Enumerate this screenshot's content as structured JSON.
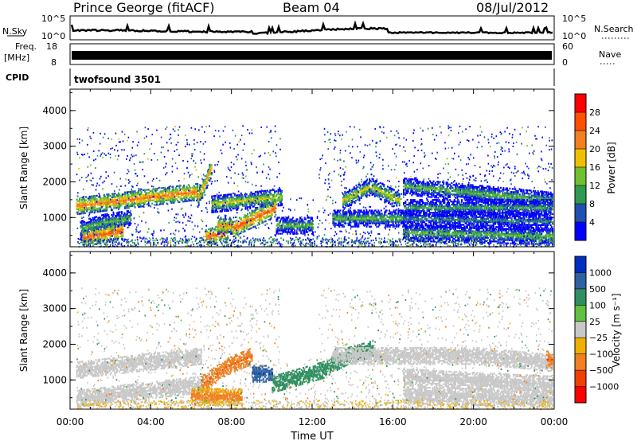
{
  "header": {
    "station": "Prince George (fitACF)",
    "beam": "Beam 04",
    "date": "08/Jul/2012"
  },
  "top_panels": {
    "nsky_label": "N.Sky",
    "nsky_ticks": [
      "10^5",
      "10^0"
    ],
    "nsearch_label": "N.Search",
    "nsearch_ticks": [
      "10^5",
      "10^0"
    ],
    "freq_label": [
      "Freq.",
      "[MHz]"
    ],
    "freq_ticks": [
      "18",
      "8"
    ],
    "nave_label": "Nave",
    "nave_ticks": [
      "60",
      "0"
    ],
    "cpid_label": "CPID",
    "cpid_value": "twofsound 3501"
  },
  "chart_data": [
    {
      "type": "heatmap",
      "name": "power",
      "ylabel": "Slant Range [km]",
      "xlabel": "Time UT",
      "xlim": [
        0,
        24
      ],
      "ylim": [
        180,
        4600
      ],
      "yticks": [
        "1000",
        "2000",
        "3000",
        "4000"
      ],
      "xtick_labels": [
        "00:00",
        "04:00",
        "08:00",
        "12:00",
        "16:00",
        "20:00",
        "00:00"
      ],
      "colorbar": {
        "label": "Power [dB]",
        "tick_labels": [
          "4",
          "8",
          "12",
          "16",
          "20",
          "24",
          "28"
        ],
        "colors": [
          "#0000ff",
          "#2050b0",
          "#2f9a50",
          "#70c030",
          "#f0c000",
          "#f08020",
          "#ff5000",
          "#ff0000"
        ]
      },
      "bands": [
        {
          "t0": 0.3,
          "t1": 6.3,
          "r0": 1350,
          "r1": 1550,
          "r2": 1750,
          "level": 26
        },
        {
          "t0": 6.3,
          "t1": 7.0,
          "r0": 1550,
          "r1": 1950,
          "r2": 2450,
          "level": 24
        },
        {
          "t0": 7.0,
          "t1": 10.5,
          "r0": 1400,
          "r1": 1500,
          "r2": 1600,
          "level": 20
        },
        {
          "t0": 0.5,
          "t1": 3.0,
          "r0": 700,
          "r1": 900,
          "r2": 1000,
          "level": 16
        },
        {
          "t0": 0.6,
          "t1": 2.6,
          "r0": 450,
          "r1": 550,
          "r2": 650,
          "level": 28
        },
        {
          "t0": 6.7,
          "t1": 7.8,
          "r0": 450,
          "r1": 550,
          "r2": 650,
          "level": 28
        },
        {
          "t0": 8.0,
          "t1": 10.2,
          "r0": 700,
          "r1": 1000,
          "r2": 1300,
          "level": 28
        },
        {
          "t0": 7.3,
          "t1": 8.0,
          "r0": 800,
          "r1": 800,
          "r2": 800,
          "level": 24
        },
        {
          "t0": 10.2,
          "t1": 12.0,
          "r0": 800,
          "r1": 800,
          "r2": 800,
          "level": 16
        },
        {
          "t0": 13.5,
          "t1": 16.3,
          "r0": 1500,
          "r1": 1900,
          "r2": 1500,
          "level": 20
        },
        {
          "t0": 13.0,
          "t1": 16.5,
          "r0": 1000,
          "r1": 1000,
          "r2": 1000,
          "level": 16
        },
        {
          "t0": 16.5,
          "t1": 23.9,
          "r0": 1900,
          "r1": 1700,
          "r2": 1500,
          "level": 16
        },
        {
          "t0": 16.5,
          "t1": 23.9,
          "r0": 1300,
          "r1": 1300,
          "r2": 1300,
          "level": 14
        },
        {
          "t0": 16.5,
          "t1": 23.9,
          "r0": 1000,
          "r1": 950,
          "r2": 900,
          "level": 12
        },
        {
          "t0": 16.5,
          "t1": 23.9,
          "r0": 600,
          "r1": 550,
          "r2": 500,
          "level": 16
        }
      ]
    },
    {
      "type": "heatmap",
      "name": "velocity",
      "ylabel": "Slant Range [km]",
      "xlabel": "Time UT",
      "xlim": [
        0,
        24
      ],
      "ylim": [
        180,
        4600
      ],
      "yticks": [
        "1000",
        "2000",
        "3000",
        "4000"
      ],
      "xtick_labels": [
        "00:00",
        "04:00",
        "08:00",
        "12:00",
        "16:00",
        "20:00",
        "00:00"
      ],
      "colorbar": {
        "label": "Velocity [m s⁻¹]",
        "tick_labels": [
          "1000",
          "500",
          "100",
          "25",
          "−25",
          "−100",
          "−500",
          "−1000"
        ],
        "colors": [
          "#0030c0",
          "#2f60a0",
          "#2f8f60",
          "#60c040",
          "#c8c8c8",
          "#f0b000",
          "#f08020",
          "#f04000",
          "#ff0000"
        ]
      },
      "bands": [
        {
          "t0": 0.3,
          "t1": 6.5,
          "r0": 1300,
          "r1": 1500,
          "r2": 1700,
          "level": 0
        },
        {
          "t0": 0.3,
          "t1": 6.5,
          "r0": 500,
          "r1": 700,
          "r2": 900,
          "level": 0
        },
        {
          "t0": 6.5,
          "t1": 9.0,
          "r0": 900,
          "r1": 1400,
          "r2": 1700,
          "level": -300
        },
        {
          "t0": 6.0,
          "t1": 8.5,
          "r0": 550,
          "r1": 550,
          "r2": 550,
          "level": -80
        },
        {
          "t0": 9.0,
          "t1": 10.0,
          "r0": 1200,
          "r1": 1200,
          "r2": 1200,
          "level": 700
        },
        {
          "t0": 10.0,
          "t1": 12.5,
          "r0": 900,
          "r1": 1100,
          "r2": 1300,
          "level": 150
        },
        {
          "t0": 12.5,
          "t1": 15.0,
          "r0": 1300,
          "r1": 1700,
          "r2": 1900,
          "level": 120
        },
        {
          "t0": 13.0,
          "t1": 16.5,
          "r0": 1700,
          "r1": 1700,
          "r2": 1700,
          "level": 0
        },
        {
          "t0": 16.5,
          "t1": 23.9,
          "r0": 1700,
          "r1": 1700,
          "r2": 1500,
          "level": 0
        },
        {
          "t0": 16.5,
          "t1": 23.9,
          "r0": 1100,
          "r1": 1000,
          "r2": 900,
          "level": 0
        },
        {
          "t0": 16.5,
          "t1": 23.9,
          "r0": 600,
          "r1": 550,
          "r2": 500,
          "level": 0
        },
        {
          "t0": 23.6,
          "t1": 23.9,
          "r0": 1600,
          "r1": 1600,
          "r2": 1600,
          "level": -300
        }
      ]
    }
  ]
}
